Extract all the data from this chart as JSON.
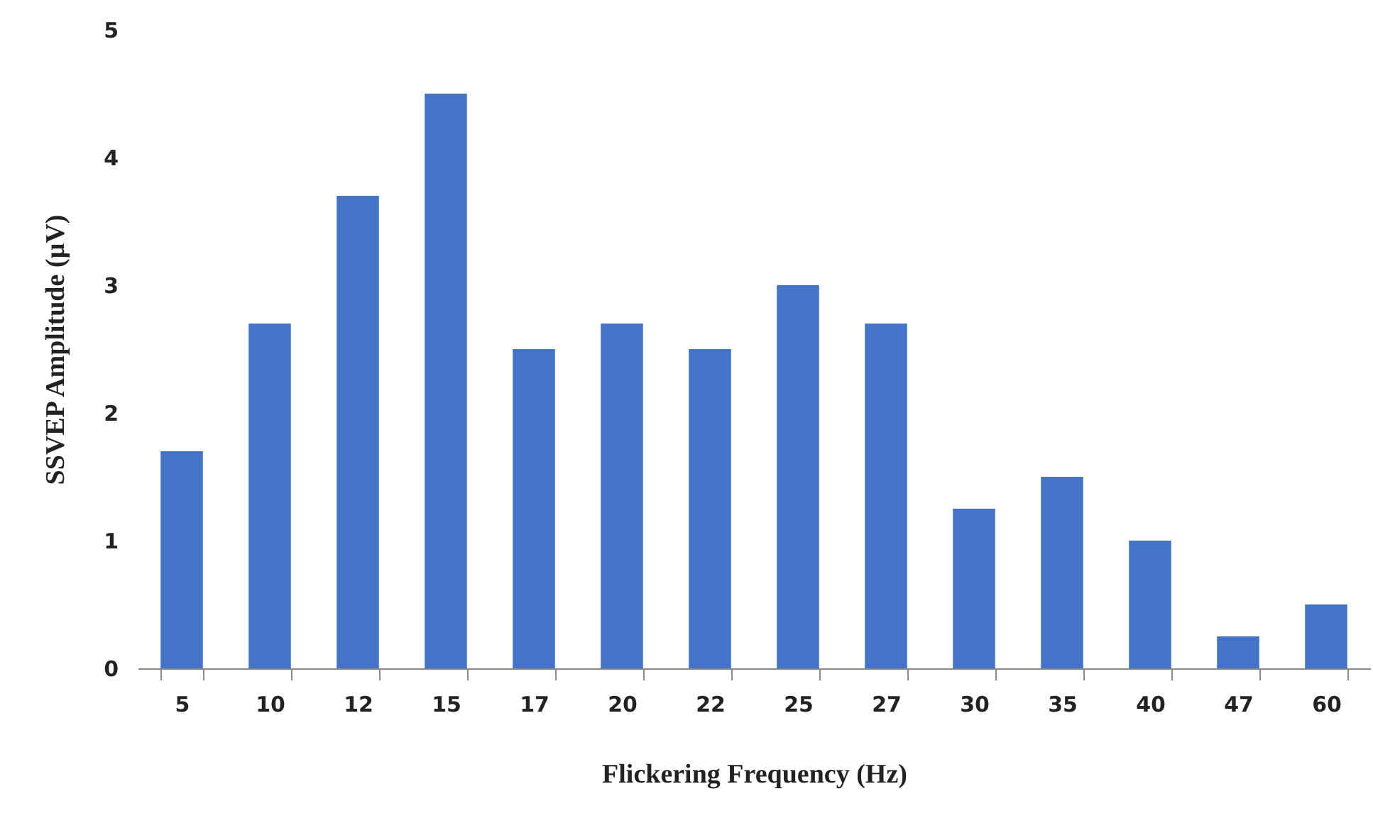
{
  "chart_data": {
    "type": "bar",
    "xlabel": "Flickering Frequency (Hz)",
    "ylabel": "SSVEP Amplitude (µV)",
    "categories": [
      "5",
      "10",
      "12",
      "15",
      "17",
      "20",
      "22",
      "25",
      "27",
      "30",
      "35",
      "40",
      "47",
      "60"
    ],
    "values": [
      1.7,
      2.7,
      3.7,
      4.5,
      2.5,
      2.7,
      2.5,
      3.0,
      2.7,
      1.25,
      1.5,
      1.0,
      0.25,
      0.5
    ],
    "color": "#4472c4",
    "ylim": [
      0,
      5
    ],
    "yticks": [
      0,
      1,
      2,
      3,
      4,
      5
    ],
    "grid": false,
    "legend": false
  }
}
